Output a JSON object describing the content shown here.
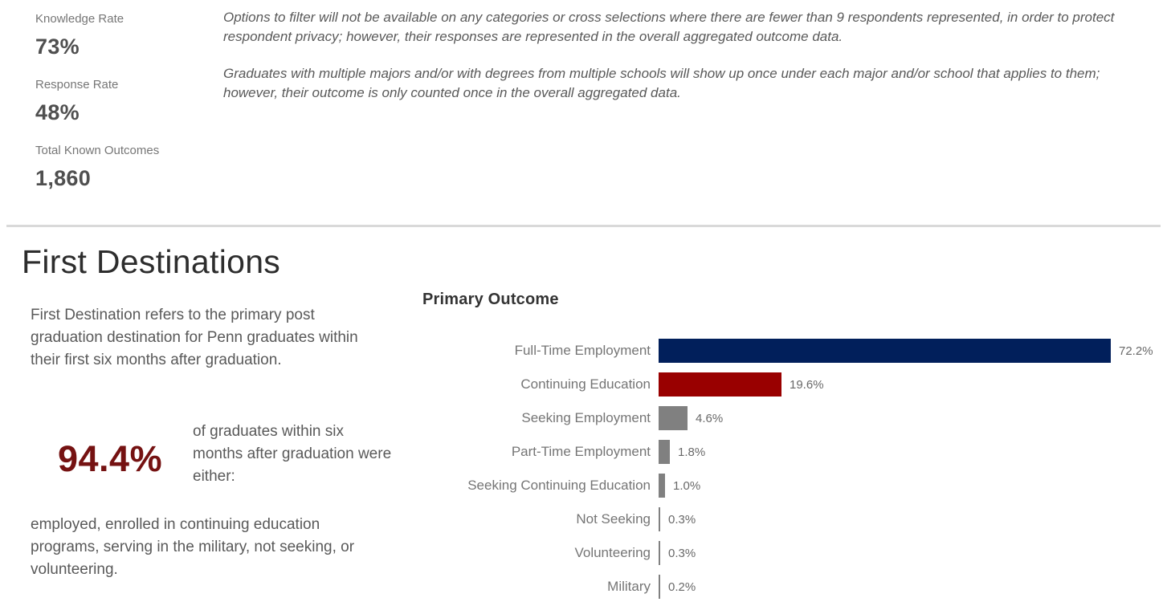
{
  "stats": [
    {
      "label": "Knowledge Rate",
      "value": "73%"
    },
    {
      "label": "Response Rate",
      "value": "48%"
    },
    {
      "label": "Total Known Outcomes",
      "value": "1,860"
    }
  ],
  "notes": {
    "paragraph1": "Options to filter will not be available on any categories or cross selections where there are fewer than 9 respondents represented, in order to protect respondent privacy; however, their responses are represented in the overall aggregated outcome data.",
    "paragraph2": "Graduates with multiple majors and/or with degrees from multiple schools will show up once under each major and/or school that applies to them; however, their outcome is only counted once in the overall aggregated data."
  },
  "section": {
    "title": "First Destinations",
    "description": "First Destination refers to the primary post graduation destination for Penn graduates within their first six months after graduation.",
    "highlight_value": "94.4%",
    "highlight_caption": "of graduates within six months after graduation were either:",
    "highlight_detail": "employed, enrolled in continuing education programs, serving in the military, not seeking, or volunteering."
  },
  "chart_data": {
    "type": "bar",
    "orientation": "horizontal",
    "title": "Primary Outcome",
    "categories": [
      "Full-Time Employment",
      "Continuing Education",
      "Seeking Employment",
      "Part-Time Employment",
      "Seeking Continuing Education",
      "Not Seeking",
      "Volunteering",
      "Military"
    ],
    "values": [
      72.2,
      19.6,
      4.6,
      1.8,
      1.0,
      0.3,
      0.3,
      0.2
    ],
    "value_labels": [
      "72.2%",
      "19.6%",
      "4.6%",
      "1.8%",
      "1.0%",
      "0.3%",
      "0.3%",
      "0.2%"
    ],
    "bar_colors": [
      "#011f5b",
      "#990000",
      "#808080",
      "#808080",
      "#808080",
      "#808080",
      "#808080",
      "#808080"
    ],
    "xlim": [
      0,
      75
    ],
    "grid": false,
    "legend": "none",
    "xlabel": "",
    "ylabel": ""
  },
  "colors": {
    "penn_blue": "#011f5b",
    "penn_red": "#990000",
    "highlight_red": "#751212",
    "gray_bar": "#808080",
    "stat_label_gray": "#767676",
    "stat_value_gray": "#4f4f4f",
    "body_text_gray": "#595959",
    "divider_gray": "#d9d9d9"
  }
}
